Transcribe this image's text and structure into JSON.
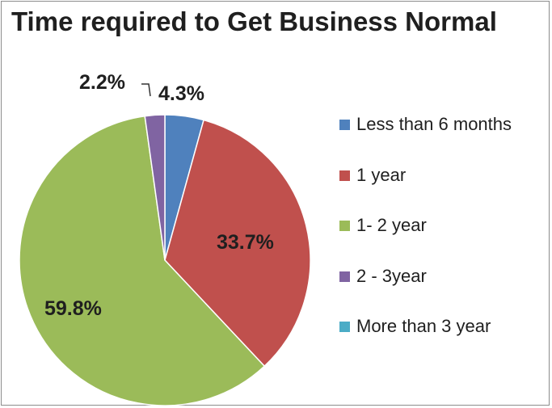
{
  "chart_data": {
    "type": "pie",
    "title": "Time required to Get Business Normal",
    "categories": [
      "Less than 6 months",
      "1 year",
      "1- 2 year",
      "2 - 3year",
      "More than 3 year"
    ],
    "values": [
      4.3,
      33.7,
      59.8,
      2.2,
      0
    ],
    "value_labels": [
      "4.3%",
      "33.7%",
      "59.8%",
      "2.2%",
      ""
    ],
    "colors": [
      "#4f81bd",
      "#c0504d",
      "#9bbb59",
      "#8064a2",
      "#4bacc6"
    ],
    "legend_position": "right"
  }
}
